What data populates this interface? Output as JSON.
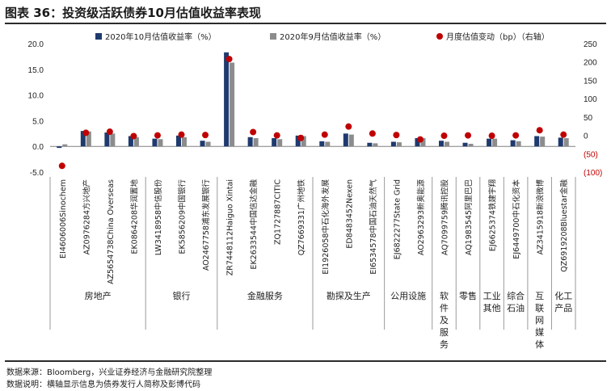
{
  "title": "图表 36：投资级活跃债券10月估值收益率表现",
  "footer": {
    "source": "数据来源：Bloomberg，兴业证券经济与金融研究院整理",
    "note": "数据说明：横轴显示信息为债券发行人简称及彭博代码"
  },
  "colors": {
    "oct": "#1f3a6e",
    "sep": "#8c8c8c",
    "change": "#c00000",
    "axis": "#808080"
  },
  "chart_data": {
    "type": "bar",
    "categories": [
      "EI4606006Sinochem",
      "AZ0976284方兴地产",
      "AZ5654738China Overseas",
      "EK0864208华润置地",
      "LW3418958中信股份",
      "EK5856209中国银行",
      "AO2467758浦东发展银行",
      "ZR7448112Haiguo Xintai",
      "EK2633544中国信达金融",
      "ZQ1727887CITIC",
      "QZ7669331广州地铁",
      "EI1926058中石化海外发展",
      "ED8483452Nexen",
      "EI6534578中国石油天然气",
      "EJ6822277State Grid",
      "AO2963293新奥能源",
      "AQ7099759腾讯控股",
      "AQ1983545阿里巴巴",
      "EJ6625374铁建宇翔",
      "EJ6449700中石化资本",
      "AZ3415918新浪微博",
      "QZ6919208Bluestar金融"
    ],
    "series": [
      {
        "name": "2020年10月估值收益率（%）",
        "axis": "left",
        "kind": "bar",
        "values": [
          -0.3,
          3.0,
          2.7,
          2.0,
          1.5,
          2.1,
          1.1,
          18.3,
          1.8,
          1.6,
          2.1,
          1.0,
          2.5,
          0.7,
          0.9,
          1.6,
          1.1,
          0.7,
          1.5,
          1.2,
          2.0,
          1.7
        ]
      },
      {
        "name": "2020年9月估值收益率（%）",
        "axis": "left",
        "kind": "bar",
        "values": [
          0.4,
          2.9,
          2.5,
          1.8,
          1.4,
          1.8,
          0.9,
          16.3,
          1.6,
          1.4,
          2.0,
          0.9,
          2.3,
          0.6,
          0.8,
          1.6,
          0.9,
          0.5,
          1.5,
          1.0,
          1.9,
          1.6
        ]
      },
      {
        "name": "月度估值变动（bp）（右轴）",
        "axis": "right",
        "kind": "dot",
        "values": [
          -83,
          7,
          10,
          -2,
          0,
          2,
          1,
          208,
          9,
          0,
          -7,
          2,
          24,
          5,
          1,
          -11,
          -1,
          0,
          -1,
          0,
          14,
          2
        ]
      }
    ],
    "groups": [
      {
        "label": "房地产",
        "start": 0,
        "end": 3
      },
      {
        "label": "银行",
        "start": 4,
        "end": 6
      },
      {
        "label": "金融服务",
        "start": 7,
        "end": 10
      },
      {
        "label": "勘探及生产",
        "start": 11,
        "end": 13
      },
      {
        "label": "公用设施",
        "start": 14,
        "end": 15
      },
      {
        "label": "软件及服务",
        "start": 16,
        "end": 16
      },
      {
        "label": "零售",
        "start": 17,
        "end": 17
      },
      {
        "label": "工业其他",
        "start": 18,
        "end": 18
      },
      {
        "label": "综合石油",
        "start": 19,
        "end": 19
      },
      {
        "label": "互联网媒体",
        "start": 20,
        "end": 20
      },
      {
        "label": "化工产品",
        "start": 21,
        "end": 21
      }
    ],
    "y_left": {
      "ylim": [
        -5,
        20
      ],
      "ticks": [
        "-5.0",
        "0.0",
        "5.0",
        "10.0",
        "15.0",
        "20.0"
      ],
      "values": [
        -5,
        0,
        5,
        10,
        15,
        20
      ]
    },
    "y_right": {
      "ylim": [
        -100,
        250
      ],
      "ticks": [
        "(100)",
        "(50)",
        "0",
        "50",
        "100",
        "150",
        "200",
        "250"
      ],
      "values": [
        -100,
        -50,
        0,
        50,
        100,
        150,
        200,
        250
      ]
    },
    "legend_position": "top",
    "grid": false
  }
}
